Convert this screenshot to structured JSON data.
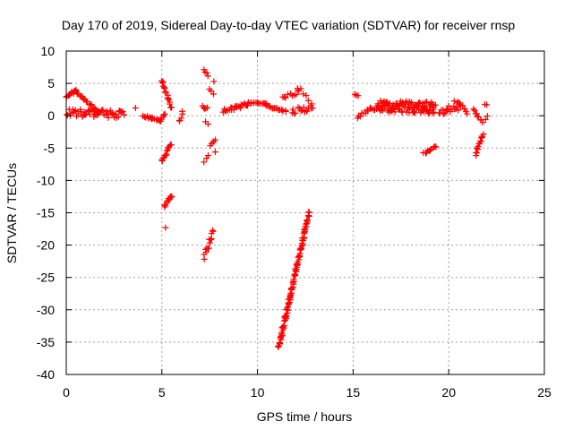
{
  "chart_data": {
    "type": "scatter",
    "title": "Day 170 of 2019, Sidereal Day-to-day VTEC variation (SDTVAR) for receiver rnsp",
    "xlabel": "GPS time / hours",
    "ylabel": "SDTVAR / TECUs",
    "xlim": [
      0,
      25
    ],
    "ylim": [
      -40,
      10
    ],
    "xticks": [
      0,
      5,
      10,
      15,
      20,
      25
    ],
    "yticks": [
      10,
      5,
      0,
      -5,
      -10,
      -15,
      -20,
      -25,
      -30,
      -35,
      -40
    ],
    "grid": true,
    "marker": "+",
    "color": "#ff0000",
    "segments": [
      {
        "x0": 0.0,
        "x1": 3.0,
        "y0": 0.5,
        "y1": 0.2,
        "n": 60,
        "spread": 0.6
      },
      {
        "x0": 0.0,
        "x1": 0.5,
        "y0": 3.0,
        "y1": 3.8,
        "n": 12,
        "spread": 0.2
      },
      {
        "x0": 0.5,
        "x1": 1.7,
        "y0": 3.8,
        "y1": 0.5,
        "n": 24,
        "spread": 0.2
      },
      {
        "x0": 3.6,
        "x1": 3.6,
        "y0": 1.2,
        "y1": 1.2,
        "n": 1,
        "spread": 0
      },
      {
        "x0": 4.0,
        "x1": 4.9,
        "y0": 0.0,
        "y1": -0.8,
        "n": 14,
        "spread": 0.15
      },
      {
        "x0": 4.9,
        "x1": 5.2,
        "y0": -0.8,
        "y1": 0.3,
        "n": 6,
        "spread": 0.1
      },
      {
        "x0": 5.0,
        "x1": 5.5,
        "y0": 5.5,
        "y1": 1.2,
        "n": 16,
        "spread": 0.2
      },
      {
        "x0": 5.0,
        "x1": 5.5,
        "y0": -7.0,
        "y1": -4.3,
        "n": 14,
        "spread": 0.25
      },
      {
        "x0": 5.1,
        "x1": 5.5,
        "y0": -14.0,
        "y1": -12.3,
        "n": 12,
        "spread": 0.3
      },
      {
        "x0": 5.2,
        "x1": 5.2,
        "y0": -17.3,
        "y1": -17.3,
        "n": 1,
        "spread": 0
      },
      {
        "x0": 5.9,
        "x1": 6.1,
        "y0": -1.0,
        "y1": 0.6,
        "n": 5,
        "spread": 0.2
      },
      {
        "x0": 7.2,
        "x1": 7.4,
        "y0": 7.0,
        "y1": 6.3,
        "n": 4,
        "spread": 0.2
      },
      {
        "x0": 7.1,
        "x1": 7.4,
        "y0": 1.3,
        "y1": 1.0,
        "n": 5,
        "spread": 0.3
      },
      {
        "x0": 7.3,
        "x1": 7.4,
        "y0": -1.0,
        "y1": -1.2,
        "n": 2,
        "spread": 0.1
      },
      {
        "x0": 7.5,
        "x1": 7.7,
        "y0": 4.0,
        "y1": 3.4,
        "n": 3,
        "spread": 0.2
      },
      {
        "x0": 7.2,
        "x1": 7.4,
        "y0": -7.0,
        "y1": -6.0,
        "n": 3,
        "spread": 0.2
      },
      {
        "x0": 7.5,
        "x1": 7.8,
        "y0": -4.5,
        "y1": -3.8,
        "n": 5,
        "spread": 0.2
      },
      {
        "x0": 7.7,
        "x1": 7.7,
        "y0": 5.3,
        "y1": 5.3,
        "n": 1,
        "spread": 0
      },
      {
        "x0": 7.8,
        "x1": 7.8,
        "y0": -5.6,
        "y1": -5.6,
        "n": 1,
        "spread": 0
      },
      {
        "x0": 7.2,
        "x1": 7.7,
        "y0": -22.0,
        "y1": -17.8,
        "n": 14,
        "spread": 0.4
      },
      {
        "x0": 8.2,
        "x1": 9.5,
        "y0": 0.8,
        "y1": 1.8,
        "n": 22,
        "spread": 0.3
      },
      {
        "x0": 9.5,
        "x1": 10.5,
        "y0": 2.0,
        "y1": 1.8,
        "n": 16,
        "spread": 0.15
      },
      {
        "x0": 10.5,
        "x1": 11.5,
        "y0": 1.5,
        "y1": 0.7,
        "n": 16,
        "spread": 0.15
      },
      {
        "x0": 11.3,
        "x1": 12.2,
        "y0": 2.8,
        "y1": 3.8,
        "n": 10,
        "spread": 0.3
      },
      {
        "x0": 12.1,
        "x1": 12.8,
        "y0": 4.5,
        "y1": 1.8,
        "n": 6,
        "spread": 0.3
      },
      {
        "x0": 11.8,
        "x1": 12.9,
        "y0": 0.5,
        "y1": 1.5,
        "n": 16,
        "spread": 0.6
      },
      {
        "x0": 11.1,
        "x1": 12.7,
        "y0": -36.0,
        "y1": -15.0,
        "n": 110,
        "spread": 0.35
      },
      {
        "x0": 15.1,
        "x1": 15.3,
        "y0": 3.2,
        "y1": 3.0,
        "n": 3,
        "spread": 0.1
      },
      {
        "x0": 15.2,
        "x1": 16.3,
        "y0": -0.2,
        "y1": 1.5,
        "n": 14,
        "spread": 0.4
      },
      {
        "x0": 16.3,
        "x1": 19.3,
        "y0": 1.5,
        "y1": 1.2,
        "n": 110,
        "spread": 0.9
      },
      {
        "x0": 18.7,
        "x1": 19.3,
        "y0": -5.8,
        "y1": -4.8,
        "n": 10,
        "spread": 0.15
      },
      {
        "x0": 19.5,
        "x1": 20.7,
        "y0": 0.5,
        "y1": 1.6,
        "n": 22,
        "spread": 0.6
      },
      {
        "x0": 20.3,
        "x1": 20.6,
        "y0": 2.2,
        "y1": 1.9,
        "n": 3,
        "spread": 0.1
      },
      {
        "x0": 20.8,
        "x1": 21.0,
        "y0": 1.2,
        "y1": 0.4,
        "n": 4,
        "spread": 0.2
      },
      {
        "x0": 21.3,
        "x1": 21.7,
        "y0": 1.0,
        "y1": -0.8,
        "n": 8,
        "spread": 0.2
      },
      {
        "x0": 21.4,
        "x1": 21.8,
        "y0": -6.0,
        "y1": -2.8,
        "n": 14,
        "spread": 0.25
      },
      {
        "x0": 21.8,
        "x1": 22.0,
        "y0": -1.0,
        "y1": 0.0,
        "n": 3,
        "spread": 0.1
      },
      {
        "x0": 21.9,
        "x1": 22.0,
        "y0": 1.8,
        "y1": 1.7,
        "n": 2,
        "spread": 0.05
      }
    ]
  }
}
